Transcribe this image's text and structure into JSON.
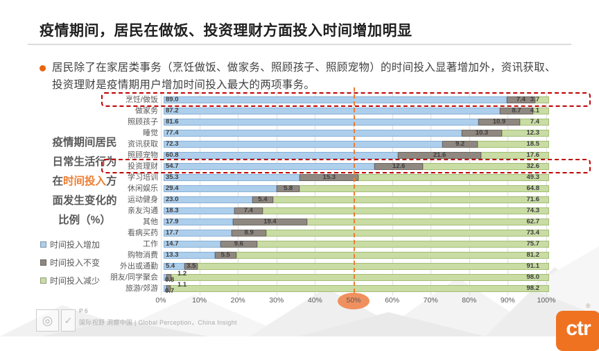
{
  "slide": {
    "title": "疫情期间，居民在做饭、投资理财方面投入时间增加明显",
    "bullet_text": "居民除了在家居类事务（烹饪做饭、做家务、照顾孩子、照顾宠物）的时间投入显著增加外，资讯获取、投资理财是疫情期用户增加时间投入最大的两项事务。",
    "page_number": "P 6",
    "footer_tagline": "国际视野 洞察中国 | Global Perception，China Insight",
    "logo_text": "ctr",
    "registered_mark": "®",
    "cert_glyph_1": "◎",
    "cert_glyph_2": "✓"
  },
  "side_caption": {
    "pre": "疫情期间居民日常生活行为在",
    "highlight": "时间投入",
    "post": "方面发生变化的比例（%）"
  },
  "colors": {
    "accent_orange": "#ed7d31",
    "highlight_red": "#c00000",
    "increase_blue": "#aecfec",
    "same_gray": "#8f8881",
    "decrease_green": "#c9dca4",
    "tick_ellipse": "#f0905f",
    "logo_orange": "#ee7220"
  },
  "legend": [
    {
      "label": "时间投入增加",
      "color": "#aecfec"
    },
    {
      "label": "时间投入不变",
      "color": "#8f8881"
    },
    {
      "label": "时间投入减少",
      "color": "#c9dca4"
    }
  ],
  "chart_data": {
    "type": "bar",
    "orientation": "horizontal",
    "stacked": true,
    "unit": "%",
    "xlim": [
      0,
      100
    ],
    "x_axis_ticks": [
      "0%",
      "10%",
      "20%",
      "30%",
      "40%",
      "50%",
      "60%",
      "70%",
      "80%",
      "90%",
      "100%"
    ],
    "grid": true,
    "legend_position": "left",
    "categories": [
      "烹饪/做饭",
      "做家务",
      "照顾孩子",
      "睡觉",
      "资讯获取",
      "照顾宠物",
      "投资理财",
      "学习培训",
      "休闲娱乐",
      "运动健身",
      "亲友沟通",
      "其他",
      "看病买药",
      "工作",
      "购物消费",
      "外出或通勤",
      "朋友/同学聚会",
      "旅游/郊游"
    ],
    "series": [
      {
        "name": "时间投入增加",
        "color": "#aecfec",
        "values": [
          89.0,
          87.2,
          81.6,
          77.4,
          72.3,
          60.8,
          54.7,
          35.3,
          29.4,
          23.0,
          18.3,
          17.9,
          17.7,
          14.7,
          13.3,
          5.4,
          0.8,
          0.7
        ]
      },
      {
        "name": "时间投入不变",
        "color": "#8f8881",
        "values": [
          7.4,
          8.7,
          10.9,
          10.3,
          9.2,
          21.6,
          12.6,
          15.3,
          5.8,
          5.4,
          7.4,
          19.4,
          8.9,
          9.6,
          5.5,
          3.5,
          1.2,
          1.1
        ]
      },
      {
        "name": "时间投入减少",
        "color": "#c9dca4",
        "values": [
          3.7,
          4.1,
          7.4,
          12.3,
          18.5,
          17.6,
          32.6,
          49.3,
          64.8,
          71.6,
          74.3,
          62.7,
          73.4,
          75.7,
          81.2,
          91.1,
          98.0,
          98.2
        ]
      }
    ],
    "highlighted_categories": [
      "烹饪/做饭",
      "投资理财"
    ],
    "reference_line_x": 50,
    "highlighted_tick": "50%"
  }
}
